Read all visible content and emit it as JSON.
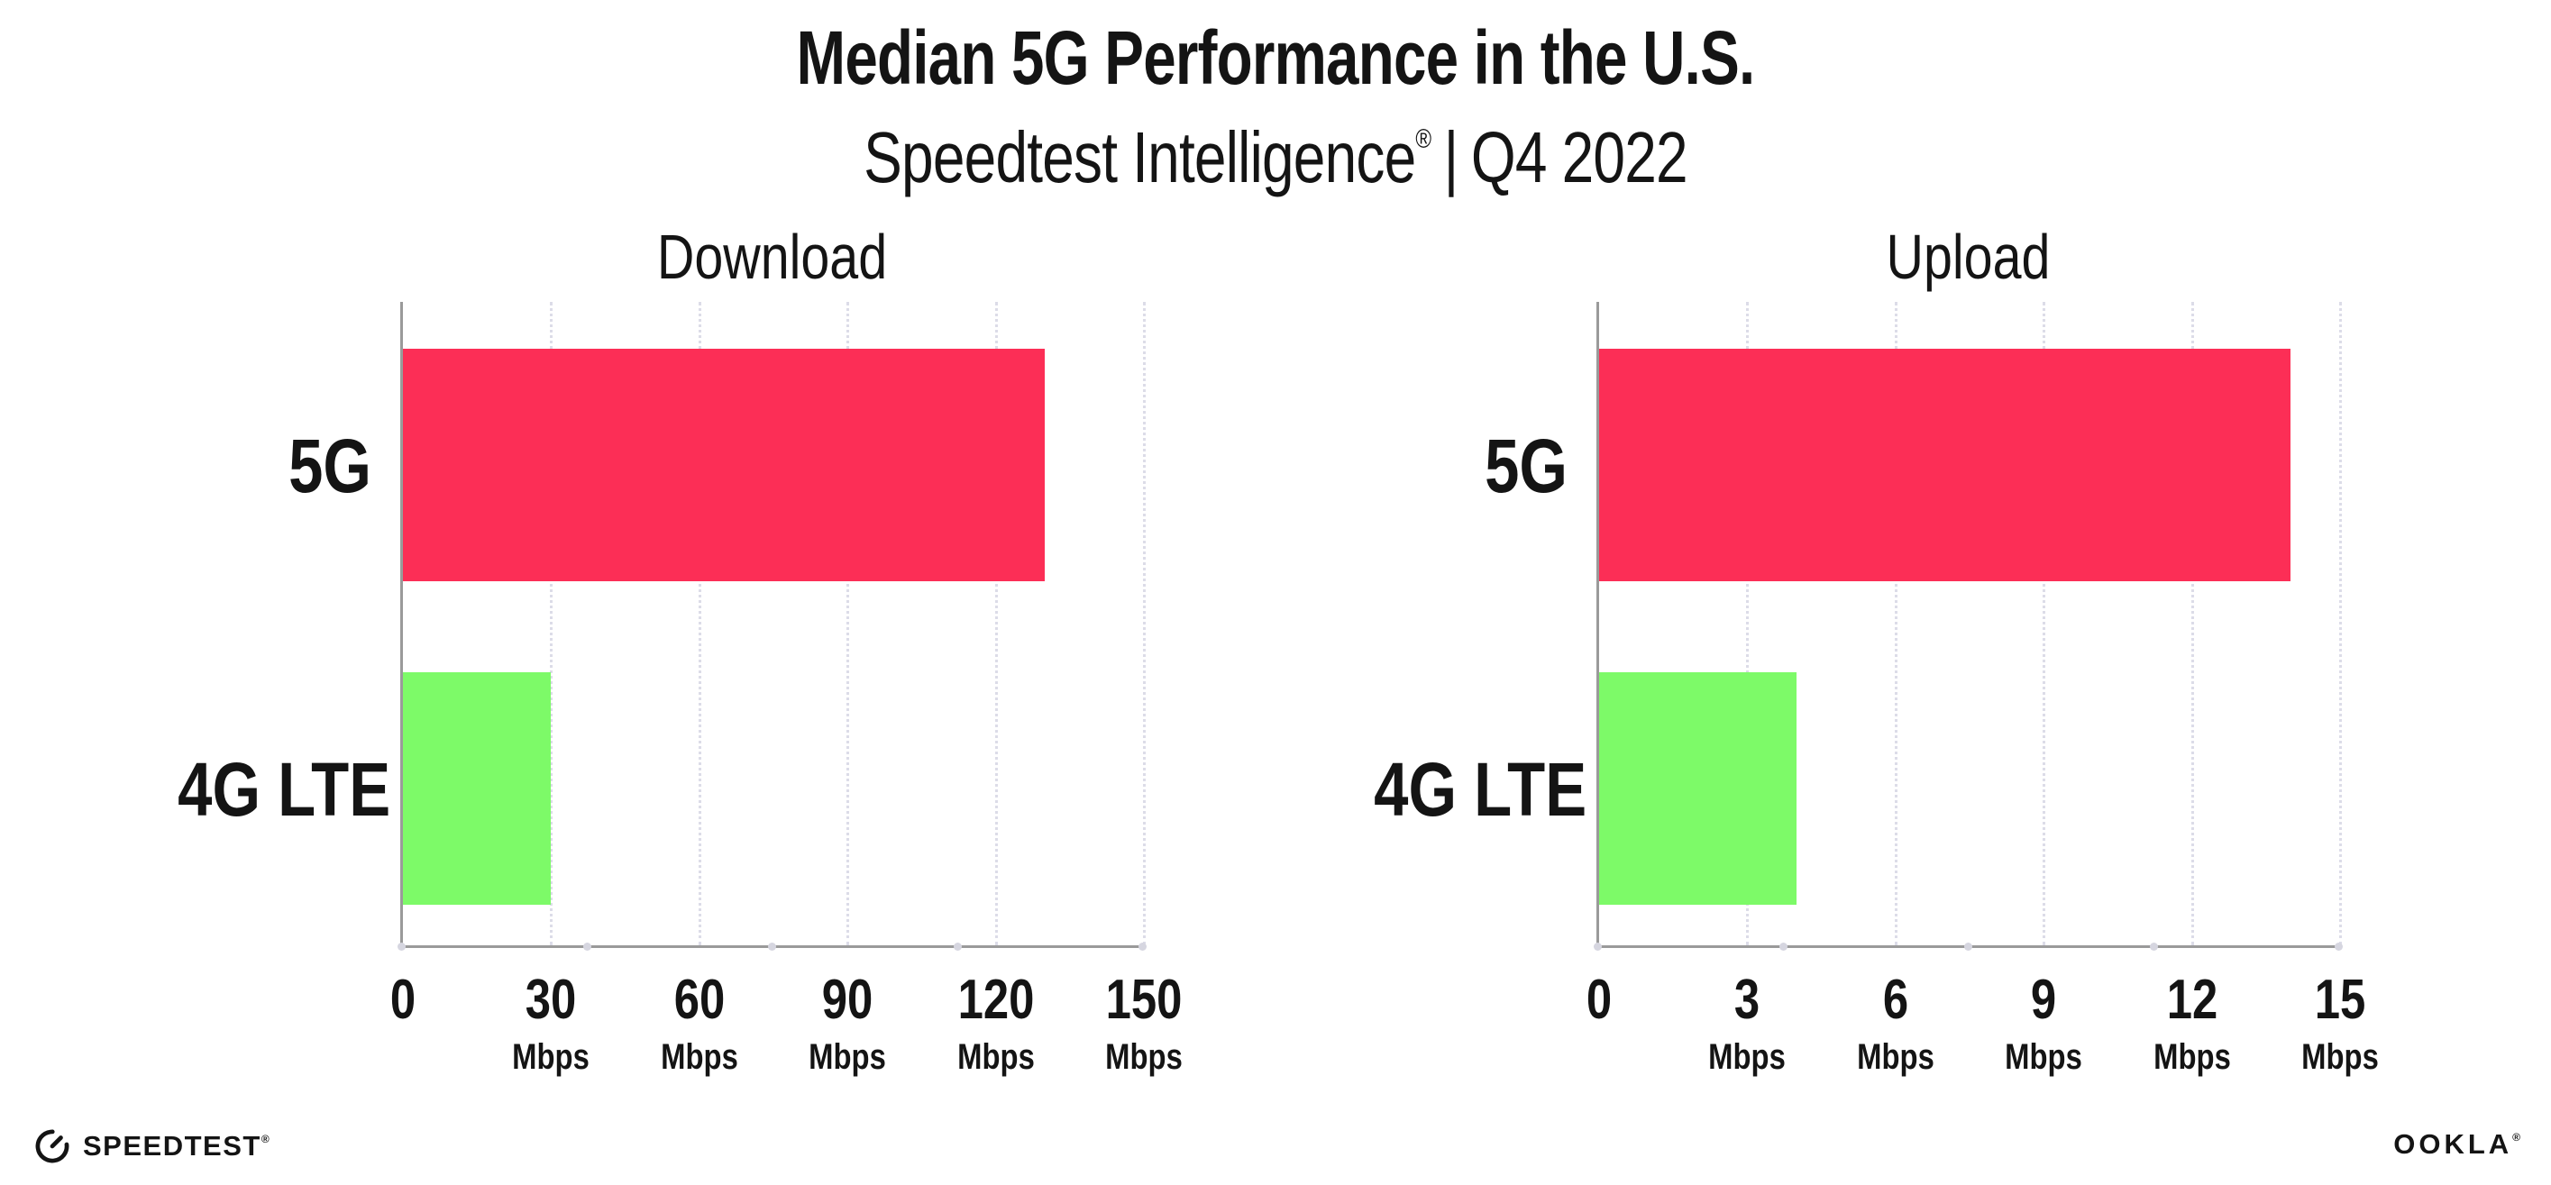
{
  "header": {
    "title": "Median 5G Performance in the U.S.",
    "subtitle_brand": "Speedtest Intelligence",
    "registered_mark": "®",
    "subtitle_separator": "|",
    "subtitle_period": "Q4 2022"
  },
  "colors": {
    "bar_5g": "#fc2e56",
    "bar_4g_lte": "#7dfa68",
    "axis_line": "#9a9a9a",
    "gridline": "#dcdce8",
    "text": "#141414"
  },
  "chart_data": [
    {
      "type": "bar",
      "orientation": "horizontal",
      "title": "Download",
      "categories": [
        "5G",
        "4G LTE"
      ],
      "values": [
        130,
        30
      ],
      "unit": "Mbps",
      "xlabel": "",
      "ylabel": "",
      "xlim": [
        0,
        150
      ],
      "xticks": [
        0,
        30,
        60,
        90,
        120,
        150
      ],
      "grid": "vertical-dotted",
      "legend": "none",
      "bar_colors": [
        "#fc2e56",
        "#7dfa68"
      ]
    },
    {
      "type": "bar",
      "orientation": "horizontal",
      "title": "Upload",
      "categories": [
        "5G",
        "4G LTE"
      ],
      "values": [
        14,
        4
      ],
      "unit": "Mbps",
      "xlabel": "",
      "ylabel": "",
      "xlim": [
        0,
        15
      ],
      "xticks": [
        0,
        3,
        6,
        9,
        12,
        15
      ],
      "grid": "vertical-dotted",
      "legend": "none",
      "bar_colors": [
        "#fc2e56",
        "#7dfa68"
      ]
    }
  ],
  "footer": {
    "speedtest_logo_text": "SPEEDTEST",
    "speedtest_mark": "®",
    "ookla_logo_text": "OOKLA",
    "ookla_mark": "®"
  }
}
